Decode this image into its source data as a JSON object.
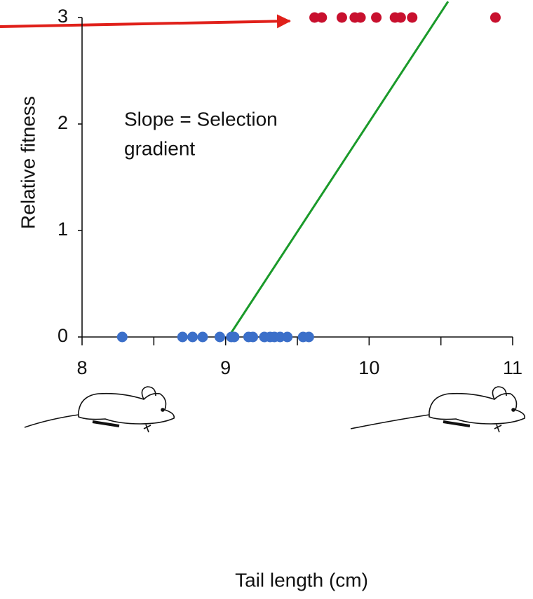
{
  "chart_data": {
    "type": "scatter",
    "x_label": "Tail length (cm)",
    "y_label": "Relative fitness",
    "annotation_lines": [
      "Slope = Selection",
      "gradient"
    ],
    "xlim": [
      8,
      11
    ],
    "ylim": [
      0,
      3
    ],
    "xticks": [
      8,
      9,
      10,
      11
    ],
    "xminorticks": [
      8.5,
      9.5,
      10.5
    ],
    "yticks": [
      0,
      1,
      2,
      3
    ],
    "series": [
      {
        "color": "#3b6fc9",
        "x": [
          8.28,
          8.7,
          8.77,
          8.84,
          8.96,
          9.04,
          9.06,
          9.16,
          9.19,
          9.27,
          9.31,
          9.34,
          9.38,
          9.43,
          9.54,
          9.58
        ],
        "values": [
          0,
          0,
          0,
          0,
          0,
          0,
          0,
          0,
          0,
          0,
          0,
          0,
          0,
          0,
          0,
          0
        ]
      },
      {
        "color": "#c8102e",
        "x": [
          9.62,
          9.67,
          9.81,
          9.9,
          9.94,
          10.05,
          10.18,
          10.22,
          10.3,
          10.88
        ],
        "values": [
          3,
          3,
          3,
          3,
          3,
          3,
          3,
          3,
          3,
          3
        ]
      }
    ],
    "fit_line": {
      "color": "#1a9a2a",
      "x": [
        9.02,
        10.55
      ],
      "values": [
        0,
        3.15
      ]
    }
  }
}
